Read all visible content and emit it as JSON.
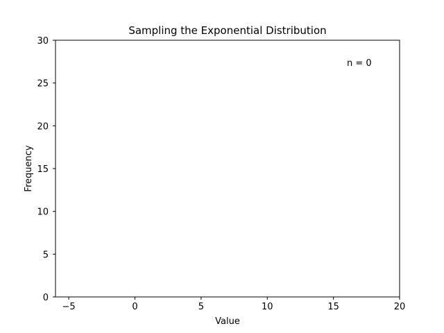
{
  "chart_data": {
    "type": "bar",
    "title": "Sampling the Exponential Distribution",
    "xlabel": "Value",
    "ylabel": "Frequency",
    "xlim": [
      -6,
      20
    ],
    "ylim": [
      0,
      30
    ],
    "xticks": [
      -5,
      0,
      5,
      10,
      15,
      20
    ],
    "yticks": [
      0,
      5,
      10,
      15,
      20,
      25,
      30
    ],
    "xtick_labels": [
      "−5",
      "0",
      "5",
      "10",
      "15",
      "20"
    ],
    "ytick_labels": [
      "0",
      "5",
      "10",
      "15",
      "20",
      "25",
      "30"
    ],
    "annotation": "n = 0",
    "annotation_position": "top-right",
    "grid": false,
    "bins": [],
    "values": []
  }
}
